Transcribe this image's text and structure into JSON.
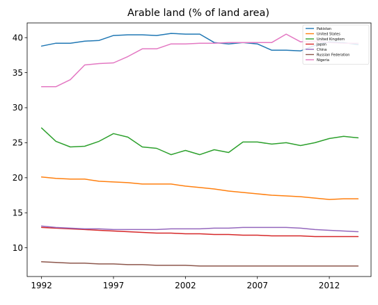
{
  "chart_data": {
    "type": "line",
    "title": "Arable land (% of land area)",
    "xlabel": "",
    "ylabel": "",
    "x": [
      1992,
      1993,
      1994,
      1995,
      1996,
      1997,
      1998,
      1999,
      2000,
      2001,
      2002,
      2003,
      2004,
      2005,
      2006,
      2007,
      2008,
      2009,
      2010,
      2011,
      2012,
      2013,
      2014
    ],
    "xticks": [
      1992,
      1997,
      2002,
      2007,
      2012
    ],
    "yticks": [
      10,
      15,
      20,
      25,
      30,
      35,
      40
    ],
    "xlim": [
      1991.0,
      2014.9
    ],
    "ylim": [
      5.9,
      42.1
    ],
    "grid": false,
    "legend_position": "top-right",
    "series": [
      {
        "name": "Pakistan",
        "color": "#1f77b4",
        "values": [
          38.8,
          39.2,
          39.2,
          39.5,
          39.6,
          40.3,
          40.4,
          40.4,
          40.3,
          40.6,
          40.5,
          40.5,
          39.3,
          39.1,
          39.3,
          39.1,
          38.2,
          38.2,
          38.1,
          38.9,
          39.4,
          39.3,
          39.0
        ]
      },
      {
        "name": "United States",
        "color": "#ff7f0e",
        "values": [
          20.1,
          19.9,
          19.8,
          19.8,
          19.5,
          19.4,
          19.3,
          19.1,
          19.1,
          19.1,
          18.8,
          18.6,
          18.4,
          18.1,
          17.9,
          17.7,
          17.5,
          17.4,
          17.3,
          17.1,
          16.9,
          17.0,
          17.0
        ]
      },
      {
        "name": "United Kingdom",
        "color": "#2ca02c",
        "values": [
          27.1,
          25.2,
          24.4,
          24.5,
          25.2,
          26.3,
          25.8,
          24.4,
          24.2,
          23.3,
          23.9,
          23.3,
          24.0,
          23.6,
          25.1,
          25.1,
          24.8,
          25.0,
          24.6,
          25.0,
          25.6,
          25.9,
          25.7
        ]
      },
      {
        "name": "Japan",
        "color": "#d62728",
        "values": [
          12.9,
          12.8,
          12.7,
          12.6,
          12.5,
          12.4,
          12.3,
          12.2,
          12.1,
          12.1,
          12.0,
          12.0,
          11.9,
          11.9,
          11.8,
          11.8,
          11.7,
          11.7,
          11.7,
          11.6,
          11.6,
          11.6,
          11.6
        ]
      },
      {
        "name": "China",
        "color": "#9467bd",
        "values": [
          13.1,
          12.9,
          12.8,
          12.7,
          12.7,
          12.6,
          12.6,
          12.6,
          12.6,
          12.7,
          12.7,
          12.7,
          12.8,
          12.8,
          12.9,
          12.9,
          12.9,
          12.9,
          12.8,
          12.6,
          12.5,
          12.4,
          12.3
        ]
      },
      {
        "name": "Russian Federation",
        "color": "#8c564b",
        "values": [
          8.0,
          7.9,
          7.8,
          7.8,
          7.7,
          7.7,
          7.6,
          7.6,
          7.5,
          7.5,
          7.5,
          7.4,
          7.4,
          7.4,
          7.4,
          7.4,
          7.4,
          7.4,
          7.4,
          7.4,
          7.4,
          7.4,
          7.4
        ]
      },
      {
        "name": "Nigeria",
        "color": "#e377c2",
        "values": [
          33.0,
          33.0,
          34.0,
          36.1,
          36.3,
          36.4,
          37.3,
          38.4,
          38.4,
          39.1,
          39.1,
          39.2,
          39.2,
          39.3,
          39.3,
          39.3,
          39.3,
          40.5,
          39.4,
          39.5,
          39.3,
          39.2,
          39.2
        ]
      }
    ]
  }
}
